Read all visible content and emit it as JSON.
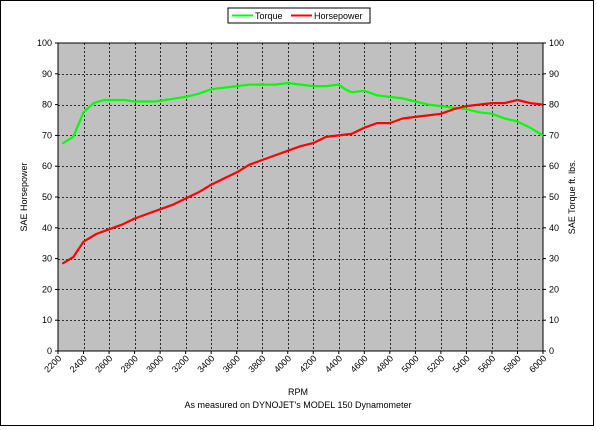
{
  "chart_data": {
    "type": "line",
    "xlabel": "RPM",
    "subtitle": "As measured on DYNOJET's MODEL 150 Dynamometer",
    "ylabel_left": "SAE Horsepower",
    "ylabel_right": "SAE Torque ft. lbs.",
    "xlim": [
      2200,
      6000
    ],
    "ylim": [
      0,
      100
    ],
    "x_ticks": [
      2200,
      2400,
      2600,
      2800,
      3000,
      3200,
      3400,
      3600,
      3800,
      4000,
      4200,
      4400,
      4600,
      4800,
      5000,
      5200,
      5400,
      5600,
      5800,
      6000
    ],
    "y_ticks": [
      0,
      10,
      20,
      30,
      40,
      50,
      60,
      70,
      80,
      90,
      100
    ],
    "grid": true,
    "legend_position": "top-center",
    "colors": {
      "plot_background": "#c0c0c0",
      "torque": "#00ff00",
      "horsepower": "#ff0000"
    },
    "series": [
      {
        "name": "Torque",
        "color": "#00ff00",
        "x": [
          2240,
          2320,
          2400,
          2480,
          2560,
          2640,
          2720,
          2800,
          2880,
          2960,
          3040,
          3120,
          3200,
          3300,
          3400,
          3500,
          3600,
          3700,
          3800,
          3900,
          4000,
          4100,
          4200,
          4300,
          4400,
          4450,
          4500,
          4600,
          4700,
          4800,
          4900,
          5000,
          5100,
          5200,
          5300,
          5400,
          5500,
          5600,
          5700,
          5800,
          5900,
          6000
        ],
        "values": [
          67.5,
          69.5,
          77.5,
          80.5,
          81.5,
          81.5,
          81.5,
          81,
          81,
          81,
          81.5,
          82,
          82.5,
          83.5,
          85,
          85.5,
          86,
          86.5,
          86.5,
          86.5,
          87,
          86.5,
          86,
          86,
          86.5,
          85,
          84,
          84.5,
          83,
          82.5,
          82,
          81,
          80,
          79.5,
          79,
          78.5,
          77.5,
          77,
          75.5,
          74.5,
          72.5,
          70
        ]
      },
      {
        "name": "Horsepower",
        "color": "#ff0000",
        "x": [
          2240,
          2320,
          2400,
          2500,
          2600,
          2700,
          2800,
          2900,
          3000,
          3100,
          3200,
          3300,
          3400,
          3500,
          3600,
          3700,
          3800,
          3900,
          4000,
          4100,
          4200,
          4300,
          4400,
          4500,
          4600,
          4700,
          4800,
          4900,
          5000,
          5100,
          5200,
          5300,
          5400,
          5500,
          5600,
          5700,
          5800,
          5900,
          6000
        ],
        "values": [
          28.5,
          30.5,
          35.5,
          38,
          39.5,
          41,
          43,
          44.5,
          46,
          47.5,
          49.5,
          51.5,
          54,
          56,
          58,
          60.5,
          62,
          63.5,
          65,
          66.5,
          67.5,
          69.5,
          70,
          70.5,
          72.5,
          74,
          74,
          75.5,
          76,
          76.5,
          77,
          78.5,
          79.5,
          80,
          80.5,
          80.5,
          81.5,
          80.5,
          80
        ]
      }
    ]
  }
}
